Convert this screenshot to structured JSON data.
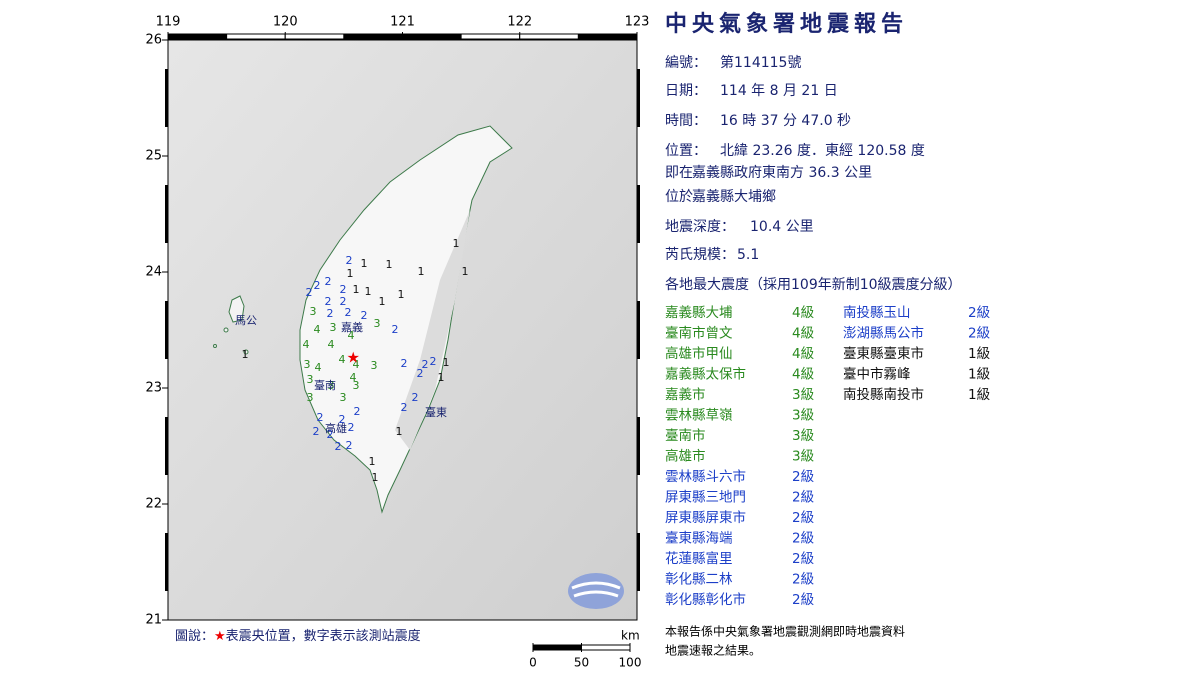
{
  "header": {
    "title": "中央氣象署地震報告"
  },
  "info": [
    {
      "label": "編號：",
      "value": "第114115號"
    },
    {
      "label": "日期：",
      "value": "114 年 8 月 21 日"
    },
    {
      "label": "時間：",
      "value": "16 時 37 分 47.0 秒"
    },
    {
      "label": "位置：",
      "value": "北緯 23.26 度．東經 120.58 度"
    },
    {
      "label": "即在",
      "value": "嘉義縣政府東南方 36.3 公里"
    },
    {
      "label": "位於",
      "value": "嘉義縣大埔鄉"
    },
    {
      "label": "地震深度：",
      "value": "10.4 公里"
    },
    {
      "label": "芮氏規模：",
      "value": "5.1"
    }
  ],
  "intensity": {
    "title": "各地最大震度（採用109年新制10級震度分級）",
    "stations": [
      {
        "name": "嘉義縣大埔",
        "level": "4級",
        "color": "#2a8a1f"
      },
      {
        "name": "臺南市曾文",
        "level": "4級",
        "color": "#2a8a1f"
      },
      {
        "name": "高雄市甲仙",
        "level": "4級",
        "color": "#2a8a1f"
      },
      {
        "name": "嘉義縣太保市",
        "level": "4級",
        "color": "#2a8a1f"
      },
      {
        "name": "嘉義市",
        "level": "3級",
        "color": "#2a8a1f"
      },
      {
        "name": "雲林縣草嶺",
        "level": "3級",
        "color": "#2a8a1f"
      },
      {
        "name": "臺南市",
        "level": "3級",
        "color": "#2a8a1f"
      },
      {
        "name": "高雄市",
        "level": "3級",
        "color": "#2a8a1f"
      },
      {
        "name": "雲林縣斗六市",
        "level": "2級",
        "color": "#1c3fc8"
      },
      {
        "name": "屏東縣三地門",
        "level": "2級",
        "color": "#1c3fc8"
      },
      {
        "name": "屏東縣屏東市",
        "level": "2級",
        "color": "#1c3fc8"
      },
      {
        "name": "臺東縣海端",
        "level": "2級",
        "color": "#1c3fc8"
      },
      {
        "name": "花蓮縣富里",
        "level": "2級",
        "color": "#1c3fc8"
      },
      {
        "name": "彰化縣二林",
        "level": "2級",
        "color": "#1c3fc8"
      },
      {
        "name": "彰化縣彰化市",
        "level": "2級",
        "color": "#1c3fc8"
      },
      {
        "name": "南投縣玉山",
        "level": "2級",
        "color": "#1c3fc8"
      },
      {
        "name": "澎湖縣馬公市",
        "level": "2級",
        "color": "#1c3fc8"
      },
      {
        "name": "臺東縣臺東市",
        "level": "1級",
        "color": "#111111"
      },
      {
        "name": "臺中市霧峰",
        "level": "1級",
        "color": "#111111"
      },
      {
        "name": "南投縣南投市",
        "level": "1級",
        "color": "#111111"
      }
    ]
  },
  "map": {
    "lon_ticks": [
      119,
      120,
      121,
      122,
      123
    ],
    "lat_ticks": [
      26,
      25,
      24,
      23,
      22,
      21
    ],
    "epicenter": [
      120.58,
      23.26
    ],
    "places": [
      "馬公",
      "嘉義",
      "臺南",
      "高雄",
      "臺東"
    ],
    "station_values": [
      "1",
      "2",
      "1",
      "1",
      "1",
      "1",
      "1",
      "2",
      "2",
      "2",
      "2",
      "1",
      "1",
      "2",
      "2",
      "1",
      "1",
      "3",
      "2",
      "2",
      "2",
      "3",
      "2",
      "4",
      "3",
      "4",
      "4",
      "4",
      "4",
      "4",
      "3",
      "3",
      "4",
      "2",
      "2",
      "2",
      "2",
      "1",
      "1",
      "4",
      "3",
      "3",
      "3",
      "3",
      "3",
      "2",
      "2",
      "2",
      "2",
      "2",
      "2",
      "2",
      "2",
      "1",
      "2",
      "2",
      "1",
      "1",
      "1"
    ],
    "station_colors": [
      "#111111",
      "#1c3fc8",
      "#111111",
      "#111111",
      "#111111",
      "#111111",
      "#111111",
      "#1c3fc8",
      "#1c3fc8",
      "#1c3fc8",
      "#1c3fc8",
      "#111111",
      "#111111",
      "#1c3fc8",
      "#1c3fc8",
      "#111111",
      "#111111",
      "#2a8a1f",
      "#1c3fc8",
      "#1c3fc8",
      "#1c3fc8",
      "#2a8a1f",
      "#1c3fc8",
      "#2a8a1f",
      "#2a8a1f",
      "#2a8a1f",
      "#2a8a1f",
      "#2a8a1f",
      "#2a8a1f",
      "#2a8a1f",
      "#2a8a1f",
      "#2a8a1f",
      "#2a8a1f",
      "#1c3fc8",
      "#1c3fc8",
      "#1c3fc8",
      "#1c3fc8",
      "#111111",
      "#111111",
      "#2a8a1f",
      "#2a8a1f",
      "#2a8a1f",
      "#2a8a1f",
      "#2a8a1f",
      "#2a8a1f",
      "#1c3fc8",
      "#1c3fc8",
      "#1c3fc8",
      "#1c3fc8",
      "#1c3fc8",
      "#1c3fc8",
      "#1c3fc8",
      "#1c3fc8",
      "#111111",
      "#1c3fc8",
      "#1c3fc8",
      "#111111",
      "#111111",
      "#111111"
    ]
  },
  "legend": [
    "圖說：",
    "★",
    "表震央位置，數字表示該測站震度"
  ],
  "scale": {
    "unit": "km",
    "ticks": [
      0,
      50,
      100
    ]
  },
  "note": [
    "本報告係中央氣象署地震觀測網即時地震資料",
    "地震速報之結果。"
  ]
}
